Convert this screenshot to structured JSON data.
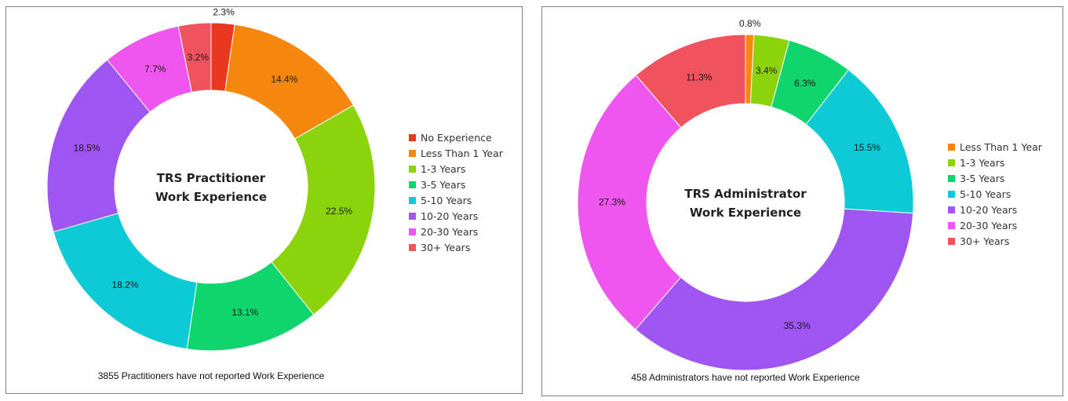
{
  "chart_data": [
    {
      "type": "pie",
      "title": "TRS Practitioner Work Experience",
      "title_lines": [
        "TRS Practitioner",
        "Work Experience"
      ],
      "footnote": "3855 Practitioners have not reported Work Experience",
      "legend_position": "right",
      "categories": [
        "No Experience",
        "Less Than 1 Year",
        "1-3 Years",
        "3-5 Years",
        "5-10 Years",
        "10-20 Years",
        "20-30 Years",
        "30+ Years"
      ],
      "values": [
        2.3,
        14.4,
        22.5,
        13.1,
        18.2,
        18.5,
        7.7,
        3.2
      ],
      "labels": [
        "2.3%",
        "14.4%",
        "22.5%",
        "13.1%",
        "18.2%",
        "18.5%",
        "7.7%",
        "3.2%"
      ],
      "colors": [
        "#e8391f",
        "#f5870f",
        "#8bd40c",
        "#10d46c",
        "#0ecad4",
        "#9f55f2",
        "#ef55ef",
        "#f0525e"
      ]
    },
    {
      "type": "pie",
      "title": "TRS Administrator Work Experience",
      "title_lines": [
        "TRS Administrator",
        "Work Experience"
      ],
      "footnote": "458 Administrators have not reported Work Experience",
      "legend_position": "right",
      "categories": [
        "Less Than 1 Year",
        "1-3 Years",
        "3-5 Years",
        "5-10 Years",
        "10-20 Years",
        "20-30 Years",
        "30+ Years"
      ],
      "values": [
        0.8,
        3.4,
        6.3,
        15.5,
        35.3,
        27.3,
        11.3
      ],
      "labels": [
        "0.8%",
        "3.4%",
        "6.3%",
        "15.5%",
        "35.3%",
        "27.3%",
        "11.3%"
      ],
      "colors": [
        "#f5870f",
        "#8bd40c",
        "#10d46c",
        "#0ecad4",
        "#9f55f2",
        "#ef55ef",
        "#f0525e"
      ]
    }
  ]
}
